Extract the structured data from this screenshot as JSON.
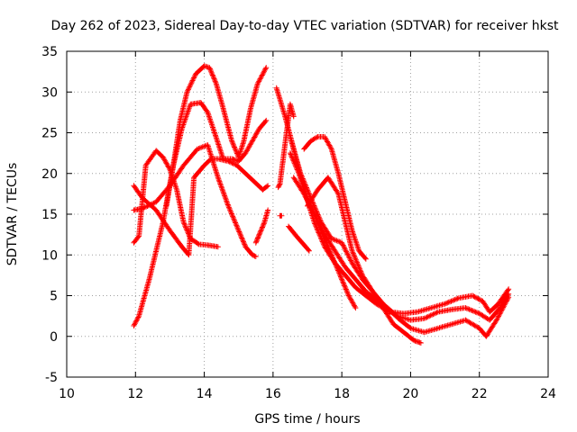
{
  "chart_data": {
    "type": "scatter",
    "title": "Day 262 of 2023, Sidereal Day-to-day VTEC variation (SDTVAR) for receiver hkst",
    "xlabel": "GPS time / hours",
    "ylabel": "SDTVAR / TECUs",
    "xlim": [
      10,
      24
    ],
    "ylim": [
      -5,
      35
    ],
    "xticks": [
      "10",
      "12",
      "14",
      "16",
      "18",
      "20",
      "22",
      "24"
    ],
    "yticks": [
      "-5",
      "0",
      "5",
      "10",
      "15",
      "20",
      "25",
      "30",
      "35"
    ],
    "grid": true,
    "marker": "+",
    "marker_color": "#ff0000",
    "series": [
      {
        "name": "arc-1",
        "x": [
          11.95,
          12.1,
          12.4,
          12.8,
          13.1,
          13.35,
          13.6,
          13.9,
          14.1,
          14.3,
          14.55,
          14.8,
          15.0,
          15.2,
          15.4,
          15.6,
          15.8
        ],
        "y": [
          1.3,
          2.5,
          7.0,
          14.0,
          21.0,
          25.5,
          28.5,
          28.7,
          27.5,
          25.0,
          21.8,
          21.8,
          21.5,
          22.5,
          24.0,
          25.5,
          26.5
        ]
      },
      {
        "name": "arc-2",
        "x": [
          12.9,
          13.1,
          13.3,
          13.5,
          13.75,
          14.0,
          14.15,
          14.35,
          14.55,
          14.8,
          15.0,
          15.15,
          15.35,
          15.55,
          15.8
        ],
        "y": [
          16.0,
          21.0,
          26.5,
          30.0,
          32.2,
          33.2,
          33.0,
          31.0,
          28.0,
          24.0,
          22.0,
          24.0,
          28.0,
          31.0,
          33.0
        ]
      },
      {
        "name": "arc-3",
        "x": [
          11.95,
          12.2,
          12.6,
          13.0,
          13.35,
          13.55,
          13.7,
          14.0,
          14.2,
          14.4,
          14.7,
          14.95,
          15.2,
          15.45,
          15.7,
          15.85
        ],
        "y": [
          18.5,
          17.0,
          15.5,
          13.0,
          11.0,
          10.0,
          19.5,
          21.0,
          21.8,
          21.8,
          21.5,
          21.0,
          20.0,
          19.0,
          18.0,
          18.5
        ]
      },
      {
        "name": "arc-4",
        "x": [
          11.95,
          12.1,
          12.3,
          12.6,
          12.8,
          13.0,
          13.2,
          13.4,
          13.6,
          13.85,
          14.1,
          14.4
        ],
        "y": [
          11.5,
          12.3,
          21.0,
          22.8,
          22.0,
          20.5,
          18.0,
          14.0,
          12.0,
          11.3,
          11.2,
          11.0
        ]
      },
      {
        "name": "arc-5",
        "x": [
          11.95,
          12.2,
          12.6,
          13.0,
          13.4,
          13.8,
          14.1,
          14.4,
          14.7,
          15.0,
          15.2,
          15.4,
          15.5
        ],
        "y": [
          15.5,
          15.7,
          16.5,
          18.5,
          21.0,
          23.0,
          23.5,
          19.5,
          16.0,
          13.0,
          11.0,
          10.0,
          9.8
        ]
      },
      {
        "name": "arc-6",
        "x": [
          15.5,
          15.6,
          15.75,
          15.85
        ],
        "y": [
          11.5,
          12.5,
          14.0,
          15.5
        ]
      },
      {
        "name": "arc-7",
        "x": [
          16.1,
          16.35,
          16.6,
          16.9,
          17.2,
          17.5,
          17.8,
          18.1,
          18.4,
          18.7,
          19.0,
          19.4,
          19.8,
          20.2,
          20.6,
          21.0,
          21.4,
          21.8,
          22.1,
          22.3,
          22.55,
          22.85
        ],
        "y": [
          30.5,
          27.0,
          23.0,
          18.0,
          14.0,
          11.0,
          9.0,
          7.5,
          6.0,
          5.0,
          4.0,
          3.0,
          2.8,
          3.0,
          3.5,
          4.0,
          4.7,
          5.0,
          4.3,
          3.0,
          4.0,
          5.8
        ]
      },
      {
        "name": "arc-8",
        "x": [
          16.5,
          16.8,
          17.1,
          17.4,
          17.7,
          18.0,
          18.3,
          18.6,
          18.9,
          19.2,
          19.6,
          20.0,
          20.4,
          20.8,
          21.2,
          21.6,
          22.0,
          22.3,
          22.6,
          22.85
        ],
        "y": [
          24.5,
          20.0,
          17.0,
          14.0,
          12.0,
          11.5,
          9.0,
          7.0,
          5.5,
          4.0,
          2.5,
          2.0,
          2.2,
          3.0,
          3.3,
          3.5,
          2.8,
          2.0,
          3.5,
          5.2
        ]
      },
      {
        "name": "arc-9",
        "x": [
          16.6,
          16.9,
          17.2,
          17.5,
          17.8,
          18.1,
          18.4,
          18.7,
          19.0,
          19.3,
          19.7,
          20.0,
          20.4,
          20.8,
          21.2,
          21.6,
          22.0,
          22.2,
          22.5,
          22.85
        ],
        "y": [
          19.5,
          17.5,
          15.0,
          12.5,
          10.5,
          8.5,
          7.0,
          5.5,
          4.5,
          3.5,
          2.0,
          1.0,
          0.5,
          1.0,
          1.5,
          2.0,
          1.0,
          0.0,
          2.0,
          4.8
        ]
      },
      {
        "name": "arc-10",
        "x": [
          16.5,
          16.75,
          17.0,
          17.25,
          17.5,
          17.75,
          18.0,
          18.2,
          18.4
        ],
        "y": [
          22.5,
          20.0,
          17.0,
          14.5,
          12.0,
          9.5,
          7.0,
          5.0,
          3.5
        ]
      },
      {
        "name": "arc-11",
        "x": [
          17.0,
          17.3,
          17.6,
          17.9,
          18.1,
          18.3,
          18.6,
          18.9,
          19.2,
          19.5,
          19.8,
          20.1,
          20.3
        ],
        "y": [
          16.0,
          18.0,
          19.5,
          17.5,
          14.0,
          10.5,
          7.5,
          5.5,
          3.5,
          1.5,
          0.5,
          -0.5,
          -0.8
        ]
      },
      {
        "name": "arc-12",
        "x": [
          16.9,
          17.1,
          17.3,
          17.5,
          17.7,
          17.9,
          18.1,
          18.3,
          18.5,
          18.7
        ],
        "y": [
          23.0,
          24.0,
          24.5,
          24.5,
          23.0,
          20.0,
          16.5,
          13.0,
          10.5,
          9.5
        ]
      },
      {
        "name": "arc-13",
        "x": [
          16.45,
          16.7,
          16.95,
          17.05
        ],
        "y": [
          13.5,
          12.2,
          11.0,
          10.5
        ]
      },
      {
        "name": "arc-14",
        "x": [
          16.15,
          16.2,
          16.5,
          16.6
        ],
        "y": [
          18.3,
          18.7,
          28.5,
          27.0
        ]
      },
      {
        "name": "arc-15",
        "x": [
          16.2,
          16.25
        ],
        "y": [
          14.8,
          14.8
        ]
      }
    ]
  }
}
